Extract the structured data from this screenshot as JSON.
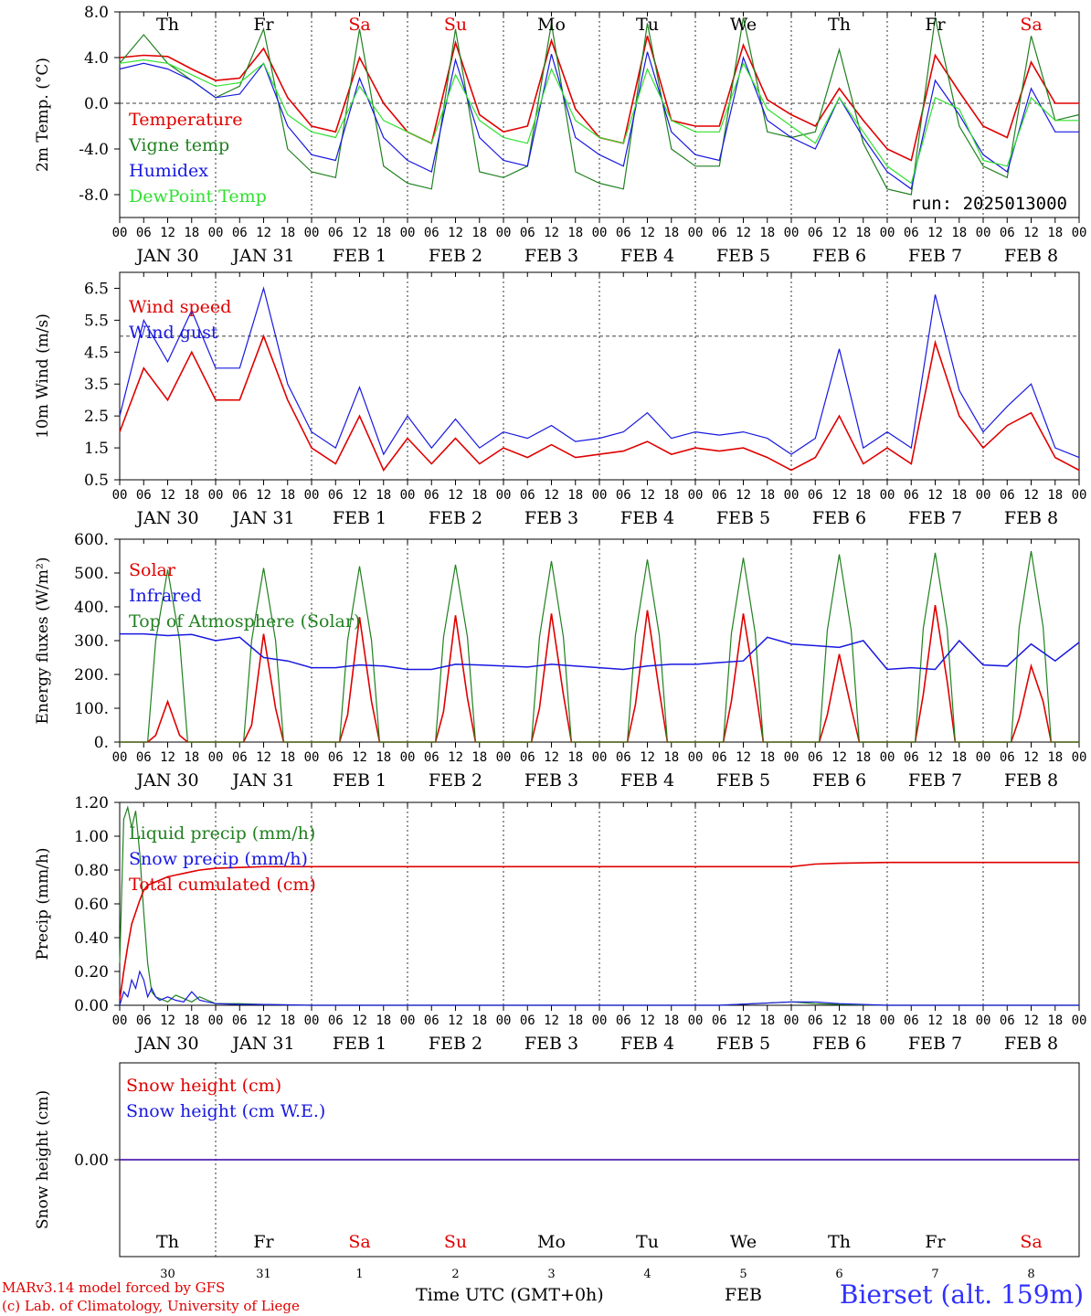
{
  "run_label": "run: 2025013000",
  "weekdays": [
    {
      "label": "Th",
      "color": "#000000"
    },
    {
      "label": "Fr",
      "color": "#000000"
    },
    {
      "label": "Sa",
      "color": "#e00000"
    },
    {
      "label": "Su",
      "color": "#e00000"
    },
    {
      "label": "Mo",
      "color": "#000000"
    },
    {
      "label": "Tu",
      "color": "#000000"
    },
    {
      "label": "We",
      "color": "#000000"
    },
    {
      "label": "Th",
      "color": "#000000"
    },
    {
      "label": "Fr",
      "color": "#000000"
    },
    {
      "label": "Sa",
      "color": "#e00000"
    }
  ],
  "date_labels": [
    "JAN 30",
    "JAN 31",
    "FEB  1",
    "FEB  2",
    "FEB  3",
    "FEB  4",
    "FEB  5",
    "FEB  6",
    "FEB  7",
    "FEB  8"
  ],
  "hour_ticks": [
    "00",
    "06",
    "12",
    "18"
  ],
  "end_tick": "00",
  "bottom_day_numbers": [
    "30",
    "31",
    "1",
    "2",
    "3",
    "4",
    "5",
    "6",
    "7",
    "8"
  ],
  "footer": {
    "model_line1": "MARv3.14 model forced by GFS",
    "model_line2": "(c) Lab. of Climatology, University of Liege",
    "time_label": "Time UTC (GMT+0h)",
    "month_label": "FEB",
    "station": "Bierset (alt. 159m)"
  },
  "colors": {
    "red": "#e00000",
    "green": "#208020",
    "blue": "#1818e0",
    "lightgreen": "#30e030"
  },
  "chart_data": [
    {
      "type": "line",
      "ylabel": "2m Temp. (°C)",
      "ylim": [
        -10,
        8
      ],
      "yticks": [
        8,
        4,
        0,
        -4,
        -8
      ],
      "ytick_labels": [
        "8.0",
        "4.0",
        "0.0",
        "-4.0",
        "-8.0"
      ],
      "ref_line": 0,
      "x_hours": [
        0,
        6,
        12,
        18,
        24,
        30,
        36,
        42,
        48,
        54,
        60,
        66,
        72,
        78,
        84,
        90,
        96,
        102,
        108,
        114,
        120,
        126,
        132,
        138,
        144,
        150,
        156,
        162,
        168,
        174,
        180,
        186,
        192,
        198,
        204,
        210,
        216,
        222,
        228,
        234,
        240
      ],
      "series": [
        {
          "name": "Temperature",
          "color": "#e00000",
          "values": [
            4.0,
            4.2,
            4.1,
            3.0,
            2.0,
            2.2,
            4.8,
            0.5,
            -2.0,
            -2.5,
            4.0,
            0.0,
            -2.5,
            -3.5,
            5.3,
            -1.0,
            -2.5,
            -2.0,
            5.5,
            -0.5,
            -3.0,
            -3.5,
            5.9,
            -1.5,
            -2.0,
            -2.0,
            5.1,
            0.3,
            -1.0,
            -2.0,
            1.3,
            -1.5,
            -4.0,
            -5.0,
            4.2,
            1.0,
            -2.0,
            -3.0,
            3.6,
            0.0,
            0.0
          ]
        },
        {
          "name": "Vigne temp",
          "color": "#208020",
          "values": [
            3.5,
            6.0,
            3.5,
            2.0,
            0.5,
            1.5,
            6.5,
            -4.0,
            -6.0,
            -6.5,
            6.5,
            -5.5,
            -7.0,
            -7.5,
            6.5,
            -6.0,
            -6.5,
            -5.5,
            7.0,
            -6.0,
            -7.0,
            -7.5,
            7.0,
            -4.0,
            -5.5,
            -5.5,
            7.5,
            -2.5,
            -3.0,
            -2.5,
            4.7,
            -3.5,
            -7.5,
            -8.0,
            7.5,
            -2.0,
            -5.5,
            -6.5,
            5.9,
            -1.5,
            -1.0
          ]
        },
        {
          "name": "Humidex",
          "color": "#1818e0",
          "values": [
            3.0,
            3.5,
            3.0,
            2.0,
            0.5,
            0.8,
            3.5,
            -2.0,
            -4.5,
            -5.0,
            2.2,
            -3.0,
            -5.0,
            -6.0,
            3.8,
            -3.0,
            -5.0,
            -5.5,
            4.3,
            -3.0,
            -4.5,
            -5.5,
            4.5,
            -2.5,
            -4.5,
            -5.0,
            4.0,
            -1.5,
            -3.0,
            -4.0,
            0.5,
            -3.0,
            -6.0,
            -7.5,
            2.0,
            -1.0,
            -4.5,
            -6.0,
            1.3,
            -2.5,
            -2.5
          ]
        },
        {
          "name": "DewPoint Temp",
          "color": "#30e030",
          "values": [
            3.5,
            3.8,
            3.5,
            2.5,
            1.5,
            1.8,
            3.5,
            -1.0,
            -2.5,
            -3.0,
            1.5,
            -1.5,
            -2.5,
            -3.5,
            2.5,
            -1.5,
            -3.0,
            -3.5,
            3.0,
            -1.5,
            -3.0,
            -3.5,
            3.0,
            -1.5,
            -2.5,
            -2.5,
            3.5,
            -0.5,
            -2.0,
            -3.5,
            0.5,
            -2.5,
            -5.5,
            -7.0,
            0.5,
            -0.5,
            -5.0,
            -5.5,
            0.5,
            -1.5,
            -1.5
          ]
        }
      ]
    },
    {
      "type": "line",
      "ylabel": "10m Wind (m/s)",
      "ylim": [
        0.5,
        7.0
      ],
      "yticks": [
        6.5,
        5.5,
        4.5,
        3.5,
        2.5,
        1.5,
        0.5
      ],
      "ytick_labels": [
        "6.5",
        "5.5",
        "4.5",
        "3.5",
        "2.5",
        "1.5",
        "0.5"
      ],
      "ref_line": 5.0,
      "x_hours": [
        0,
        6,
        12,
        18,
        24,
        30,
        36,
        42,
        48,
        54,
        60,
        66,
        72,
        78,
        84,
        90,
        96,
        102,
        108,
        114,
        120,
        126,
        132,
        138,
        144,
        150,
        156,
        162,
        168,
        174,
        180,
        186,
        192,
        198,
        204,
        210,
        216,
        222,
        228,
        234,
        240
      ],
      "series": [
        {
          "name": "Wind speed",
          "color": "#e00000",
          "values": [
            2.0,
            4.0,
            3.0,
            4.5,
            3.0,
            3.0,
            5.0,
            3.0,
            1.5,
            1.0,
            2.5,
            0.8,
            1.8,
            1.0,
            1.8,
            1.0,
            1.5,
            1.2,
            1.6,
            1.2,
            1.3,
            1.4,
            1.7,
            1.3,
            1.5,
            1.4,
            1.5,
            1.2,
            0.8,
            1.2,
            2.5,
            1.0,
            1.5,
            1.0,
            4.8,
            2.5,
            1.5,
            2.2,
            2.6,
            1.2,
            0.8
          ]
        },
        {
          "name": "Wind gust",
          "color": "#1818e0",
          "values": [
            2.5,
            5.5,
            4.2,
            5.8,
            4.0,
            4.0,
            6.5,
            3.5,
            2.0,
            1.5,
            3.4,
            1.3,
            2.5,
            1.5,
            2.4,
            1.5,
            2.0,
            1.8,
            2.2,
            1.7,
            1.8,
            2.0,
            2.6,
            1.8,
            2.0,
            1.9,
            2.0,
            1.8,
            1.3,
            1.8,
            4.6,
            1.5,
            2.0,
            1.5,
            6.3,
            3.3,
            2.0,
            2.8,
            3.5,
            1.5,
            1.2
          ]
        }
      ]
    },
    {
      "type": "line",
      "ylabel": "Energy fluxes (W/m²)",
      "ylim": [
        0,
        600
      ],
      "yticks": [
        600,
        500,
        400,
        300,
        200,
        100,
        0
      ],
      "ytick_labels": [
        "600.",
        "500.",
        "400.",
        "300.",
        "200.",
        "100.",
        "0."
      ],
      "x_hours": [
        0,
        6,
        7,
        9,
        12,
        15,
        17,
        24,
        31,
        33,
        36,
        39,
        41,
        48,
        55,
        57,
        60,
        63,
        65,
        72,
        79,
        81,
        84,
        87,
        89,
        96,
        103,
        105,
        108,
        111,
        113,
        120,
        127,
        129,
        132,
        135,
        137,
        144,
        151,
        153,
        156,
        159,
        161,
        168,
        175,
        177,
        180,
        183,
        185,
        192,
        199,
        201,
        204,
        207,
        209,
        216,
        223,
        225,
        228,
        231,
        233,
        240
      ],
      "series": [
        {
          "name": "Solar",
          "color": "#e00000",
          "values": [
            0,
            0,
            0,
            20,
            120,
            20,
            0,
            0,
            0,
            50,
            320,
            100,
            0,
            0,
            0,
            80,
            370,
            120,
            0,
            0,
            0,
            90,
            375,
            130,
            0,
            0,
            0,
            100,
            380,
            140,
            0,
            0,
            0,
            110,
            390,
            150,
            0,
            0,
            0,
            120,
            380,
            160,
            0,
            0,
            0,
            80,
            260,
            100,
            0,
            0,
            0,
            140,
            405,
            180,
            0,
            0,
            0,
            70,
            225,
            120,
            0,
            0
          ]
        },
        {
          "name": "Top of Atmosphere (Solar)",
          "color": "#208020",
          "values": [
            0,
            0,
            0,
            300,
            510,
            300,
            0,
            0,
            0,
            300,
            515,
            300,
            0,
            0,
            0,
            300,
            520,
            300,
            0,
            0,
            0,
            310,
            525,
            310,
            0,
            0,
            0,
            310,
            535,
            310,
            0,
            0,
            0,
            315,
            540,
            315,
            0,
            0,
            0,
            320,
            545,
            320,
            0,
            0,
            0,
            330,
            555,
            330,
            0,
            0,
            0,
            335,
            560,
            335,
            0,
            0,
            0,
            340,
            565,
            340,
            0,
            0
          ]
        }
      ],
      "series_daily": {
        "name": "Infrared",
        "color": "#1818e0",
        "x_hours": [
          0,
          6,
          12,
          18,
          24,
          30,
          36,
          42,
          48,
          54,
          60,
          66,
          72,
          78,
          84,
          90,
          96,
          102,
          108,
          114,
          120,
          126,
          132,
          138,
          144,
          150,
          156,
          162,
          168,
          174,
          180,
          186,
          192,
          198,
          204,
          210,
          216,
          222,
          228,
          234,
          240
        ],
        "values": [
          320,
          320,
          315,
          318,
          300,
          310,
          250,
          240,
          220,
          220,
          228,
          225,
          215,
          215,
          230,
          228,
          225,
          222,
          230,
          225,
          220,
          215,
          225,
          230,
          230,
          235,
          240,
          310,
          290,
          285,
          280,
          300,
          215,
          220,
          215,
          300,
          228,
          225,
          290,
          240,
          295
        ]
      }
    },
    {
      "type": "line",
      "ylabel": "Precip (mm/h)",
      "ylim": [
        0,
        1.2
      ],
      "yticks": [
        1.2,
        1.0,
        0.8,
        0.6,
        0.4,
        0.2,
        0
      ],
      "ytick_labels": [
        "1.20",
        "1.00",
        "0.80",
        "0.60",
        "0.40",
        "0.20",
        "0.00"
      ],
      "x_hours": [
        0,
        1,
        2,
        3,
        4,
        5,
        6,
        7,
        8,
        9,
        10,
        12,
        14,
        16,
        18,
        20,
        22,
        24,
        30,
        36,
        48,
        72,
        96,
        120,
        150,
        168,
        174,
        180,
        192,
        216,
        240
      ],
      "series": [
        {
          "name": "Liquid precip (mm/h)",
          "color": "#208020",
          "values": [
            0.25,
            1.1,
            1.17,
            1.05,
            1.15,
            0.9,
            0.55,
            0.25,
            0.08,
            0.05,
            0.04,
            0.02,
            0.06,
            0.04,
            0.02,
            0.05,
            0.03,
            0.01,
            0.01,
            0.005,
            0,
            0,
            0,
            0,
            0,
            0.02,
            0.01,
            0.005,
            0,
            0,
            0
          ]
        },
        {
          "name": "Snow precip (mm/h)",
          "color": "#1818e0",
          "values": [
            0.0,
            0.08,
            0.05,
            0.15,
            0.1,
            0.2,
            0.15,
            0.05,
            0.1,
            0.05,
            0.03,
            0.05,
            0.03,
            0.02,
            0.08,
            0.03,
            0.02,
            0.01,
            0.005,
            0.005,
            0,
            0,
            0,
            0,
            0,
            0.02,
            0.02,
            0.01,
            0,
            0,
            0
          ]
        },
        {
          "name": "Total cumulated (cm)",
          "color": "#e00000",
          "values": [
            0.03,
            0.2,
            0.35,
            0.48,
            0.55,
            0.62,
            0.68,
            0.71,
            0.72,
            0.73,
            0.74,
            0.76,
            0.77,
            0.78,
            0.79,
            0.8,
            0.805,
            0.81,
            0.815,
            0.82,
            0.82,
            0.82,
            0.82,
            0.82,
            0.82,
            0.82,
            0.835,
            0.84,
            0.845,
            0.845,
            0.845
          ]
        }
      ]
    },
    {
      "type": "line",
      "ylabel": "Snow height (cm)",
      "ylim": [
        -1,
        1
      ],
      "yticks": [
        0
      ],
      "ytick_labels": [
        "0.00"
      ],
      "x_hours": [
        0,
        240
      ],
      "series": [
        {
          "name": "Snow height (cm)",
          "color": "#e00000",
          "values": [
            0,
            0
          ]
        },
        {
          "name": "Snow height (cm W.E.)",
          "color": "#1818e0",
          "values": [
            0,
            0
          ]
        }
      ]
    }
  ]
}
